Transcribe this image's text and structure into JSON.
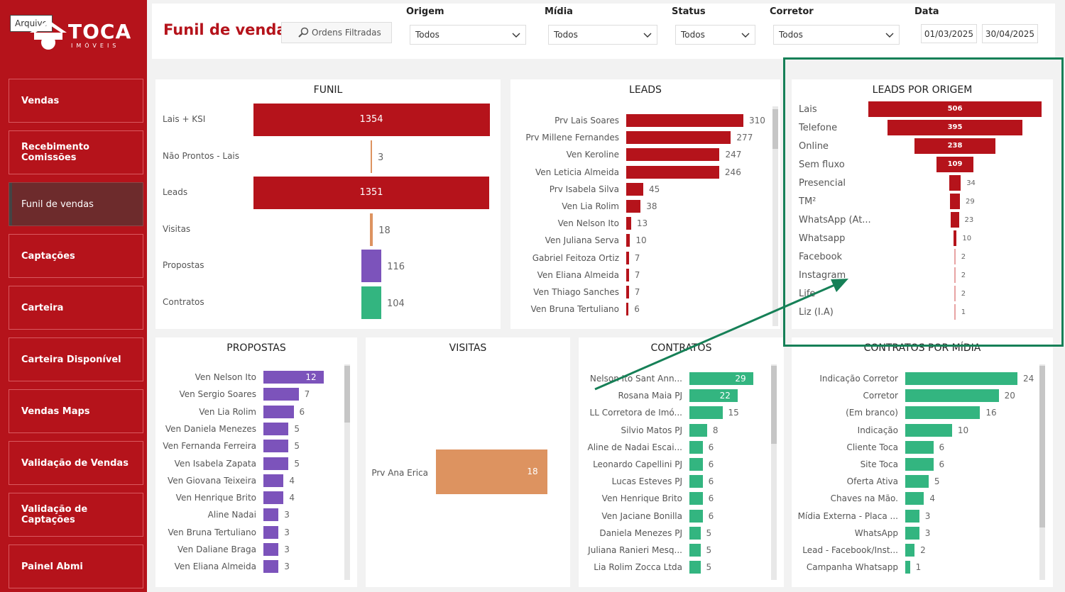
{
  "file_button": "Arquivo",
  "logo": {
    "name": "TOCA",
    "sub": "IMÓVEIS"
  },
  "nav": [
    "Vendas",
    "Recebimento Comissões",
    "Funil de vendas",
    "Captações",
    "Carteira",
    "Carteira Disponível",
    "Vendas Maps",
    "Validação de Vendas",
    "Validação de Captações",
    "Painel Abmi"
  ],
  "nav_active": 2,
  "header": {
    "title": "Funil de vendas",
    "orders_button": "Ordens Filtradas"
  },
  "filters": {
    "origem": {
      "label": "Origem",
      "value": "Todos"
    },
    "midia": {
      "label": "Mídia",
      "value": "Todos"
    },
    "status": {
      "label": "Status",
      "value": "Todos"
    },
    "corretor": {
      "label": "Corretor",
      "value": "Todos"
    },
    "data": {
      "label": "Data",
      "start": "01/03/2025",
      "end": "30/04/2025"
    }
  },
  "colors": {
    "brand_red": "#b5131b",
    "dark_red": "#6d2b2c",
    "orange": "#dd9360",
    "purple": "#7c53bb",
    "green": "#33b580",
    "highlight": "#168057"
  },
  "chart_data": [
    {
      "type": "bar",
      "title": "FUNIL",
      "categories": [
        "Lais + KSI",
        "Não Prontos - Lais",
        "Leads",
        "Visitas",
        "Propostas",
        "Contratos"
      ],
      "values": [
        1354,
        3,
        1351,
        18,
        116,
        104
      ],
      "colors": [
        "#b5131b",
        "#dd9360",
        "#b5131b",
        "#dd9360",
        "#7c53bb",
        "#33b580"
      ]
    },
    {
      "type": "bar",
      "title": "LEADS",
      "categories": [
        "Prv Lais Soares",
        "Prv Millene Fernandes",
        "Ven Keroline",
        "Ven Leticia Almeida",
        "Prv Isabela Silva",
        "Ven Lia Rolim",
        "Ven Nelson Ito",
        "Ven Juliana Serva",
        "Gabriel Feitoza Ortiz",
        "Ven Eliana Almeida",
        "Ven Thiago Sanches",
        "Ven Bruna Tertuliano"
      ],
      "values": [
        310,
        277,
        247,
        246,
        45,
        38,
        13,
        10,
        7,
        7,
        7,
        6
      ]
    },
    {
      "type": "bar",
      "title": "LEADS POR ORIGEM",
      "categories": [
        "Lais",
        "Telefone",
        "Online",
        "Sem fluxo",
        "Presencial",
        "TM²",
        "WhatsApp (At...",
        "Whatsapp",
        "Facebook",
        "Instagram",
        "Life",
        "Liz (I.A)"
      ],
      "values": [
        506,
        395,
        238,
        109,
        34,
        29,
        23,
        10,
        2,
        2,
        2,
        1
      ]
    },
    {
      "type": "bar",
      "title": "PROPOSTAS",
      "categories": [
        "Ven Nelson Ito",
        "Ven Sergio Soares",
        "Ven Lia Rolim",
        "Ven Daniela Menezes",
        "Ven Fernanda Ferreira",
        "Ven Isabela Zapata",
        "Ven Giovana Teixeira",
        "Ven Henrique Brito",
        "Aline Nadai",
        "Ven Bruna Tertuliano",
        "Ven Daliane Braga",
        "Ven Eliana Almeida"
      ],
      "values": [
        12,
        7,
        6,
        5,
        5,
        5,
        4,
        4,
        3,
        3,
        3,
        3
      ]
    },
    {
      "type": "bar",
      "title": "VISITAS",
      "categories": [
        "Prv Ana Erica"
      ],
      "values": [
        18
      ]
    },
    {
      "type": "bar",
      "title": "CONTRATOS",
      "categories": [
        "Nelson Ito Sant Ann...",
        "Rosana Maia PJ",
        "LL Corretora de Imó...",
        "Silvio Matos PJ",
        "Aline de Nadai Escai...",
        "Leonardo Capellini PJ",
        "Lucas Esteves PJ",
        "Ven Henrique Brito",
        "Ven Jaciane Bonilla",
        "Daniela Menezes PJ",
        "Juliana Ranieri Mesq...",
        "Lia Rolim Zocca Ltda"
      ],
      "values": [
        29,
        22,
        15,
        8,
        6,
        6,
        6,
        6,
        6,
        5,
        5,
        5
      ]
    },
    {
      "type": "bar",
      "title": "CONTRATOS POR MÍDIA",
      "categories": [
        "Indicação Corretor",
        "Corretor",
        "(Em branco)",
        "Indicação",
        "Cliente Toca",
        "Site Toca",
        "Oferta Ativa",
        "Chaves na Mão.",
        "Mídia Externa - Placa ...",
        "WhatsApp",
        "Lead - Facebook/Inst...",
        "Campanha Whatsapp"
      ],
      "values": [
        24,
        20,
        16,
        10,
        6,
        6,
        5,
        4,
        3,
        3,
        2,
        1
      ]
    }
  ]
}
